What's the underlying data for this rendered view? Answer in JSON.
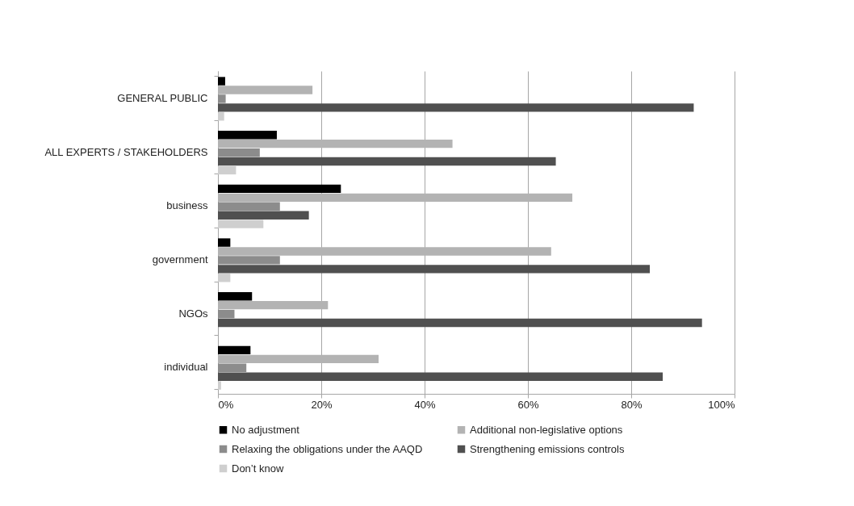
{
  "chart_data": {
    "type": "bar",
    "orientation": "horizontal",
    "categories": [
      "GENERAL PUBLIC",
      "ALL EXPERTS / STAKEHOLDERS",
      "business",
      "government",
      "NGOs",
      "individual"
    ],
    "series": [
      {
        "name": "No adjustment",
        "color": "#000000",
        "values": [
          1.4,
          11.4,
          23.8,
          2.4,
          6.6,
          6.3
        ]
      },
      {
        "name": "Additional non-legislative options",
        "color": "#b3b3b3",
        "values": [
          18.3,
          45.4,
          68.6,
          64.5,
          21.3,
          31.1
        ]
      },
      {
        "name": "Relaxing the obligations under the AAQD",
        "color": "#8c8c8c",
        "values": [
          1.5,
          8.1,
          12.0,
          12.0,
          3.2,
          5.5
        ]
      },
      {
        "name": "Strengthening emissions controls",
        "color": "#505050",
        "values": [
          92.1,
          65.4,
          17.6,
          83.6,
          93.7,
          86.1
        ]
      },
      {
        "name": "Don’t know",
        "color": "#cfcfcf",
        "values": [
          1.2,
          3.5,
          8.8,
          2.4,
          0,
          0.6
        ]
      }
    ],
    "xlim": [
      0,
      100
    ],
    "xticks": [
      {
        "value": 0,
        "label": "0%"
      },
      {
        "value": 20,
        "label": "20%"
      },
      {
        "value": 40,
        "label": "40%"
      },
      {
        "value": 60,
        "label": "60%"
      },
      {
        "value": 80,
        "label": "80%"
      },
      {
        "value": 100,
        "label": "100%"
      }
    ],
    "grid": "x",
    "legend": "bottom"
  }
}
